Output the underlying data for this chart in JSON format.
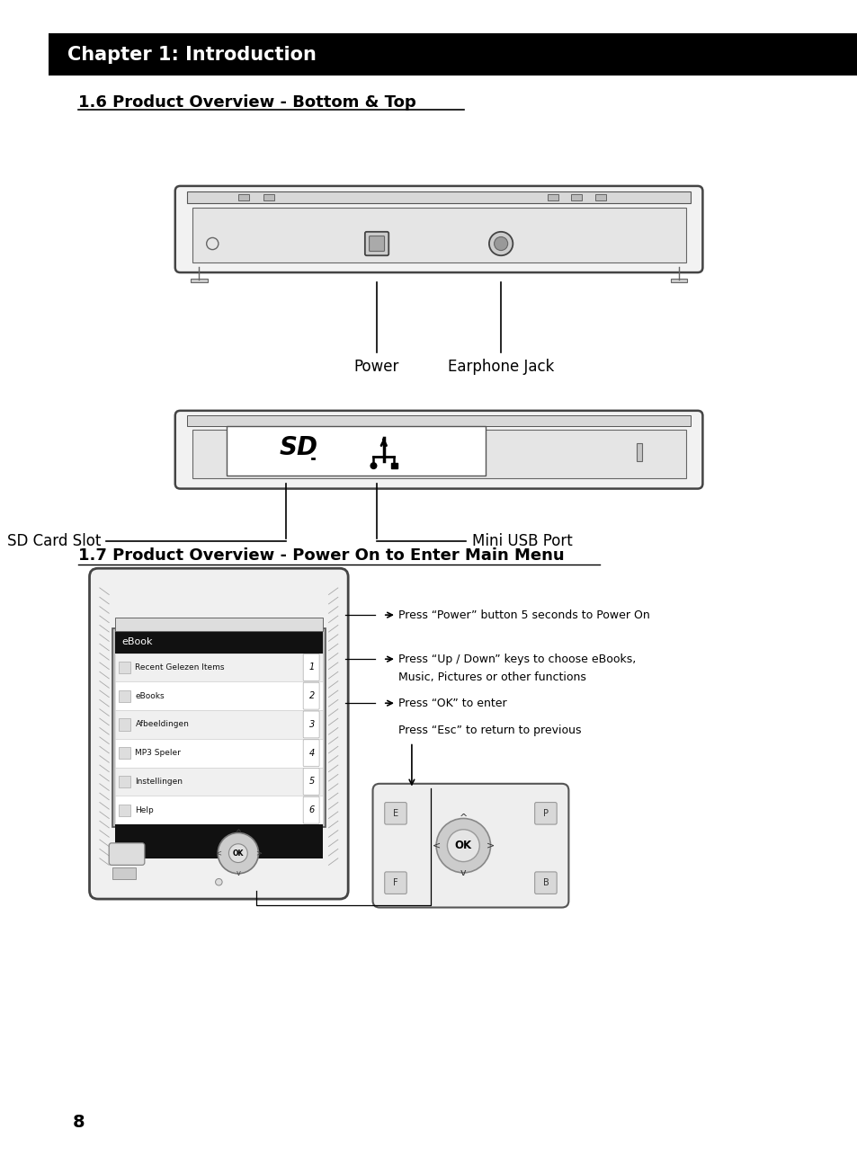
{
  "bg_color": "#ffffff",
  "header_bg": "#000000",
  "header_text": "Chapter 1: Introduction",
  "header_text_color": "#ffffff",
  "section1_title": "1.6 Product Overview - Bottom & Top",
  "section2_title": "1.7 Product Overview - Power On to Enter Main Menu",
  "label_power": "Power",
  "label_earphone": "Earphone Jack",
  "label_sd": "SD Card Slot",
  "label_usb": "Mini USB Port",
  "label_press1": "Press “Power” button 5 seconds to Power On",
  "label_press2_1": "Press “Up / Down” keys to choose eBooks,",
  "label_press2_2": "Music, Pictures or other functions",
  "label_press3": "Press “OK” to enter",
  "label_press4": "Press “Esc” to return to previous",
  "page_number": "8",
  "menu_items": [
    "Recent Gelezen Items",
    "eBooks",
    "Afbeeldingen",
    "MP3 Speler",
    "Instellingen",
    "Help"
  ],
  "menu_numbers": [
    "1",
    "2",
    "3",
    "4",
    "5",
    "6"
  ],
  "menu_title": "eBook"
}
